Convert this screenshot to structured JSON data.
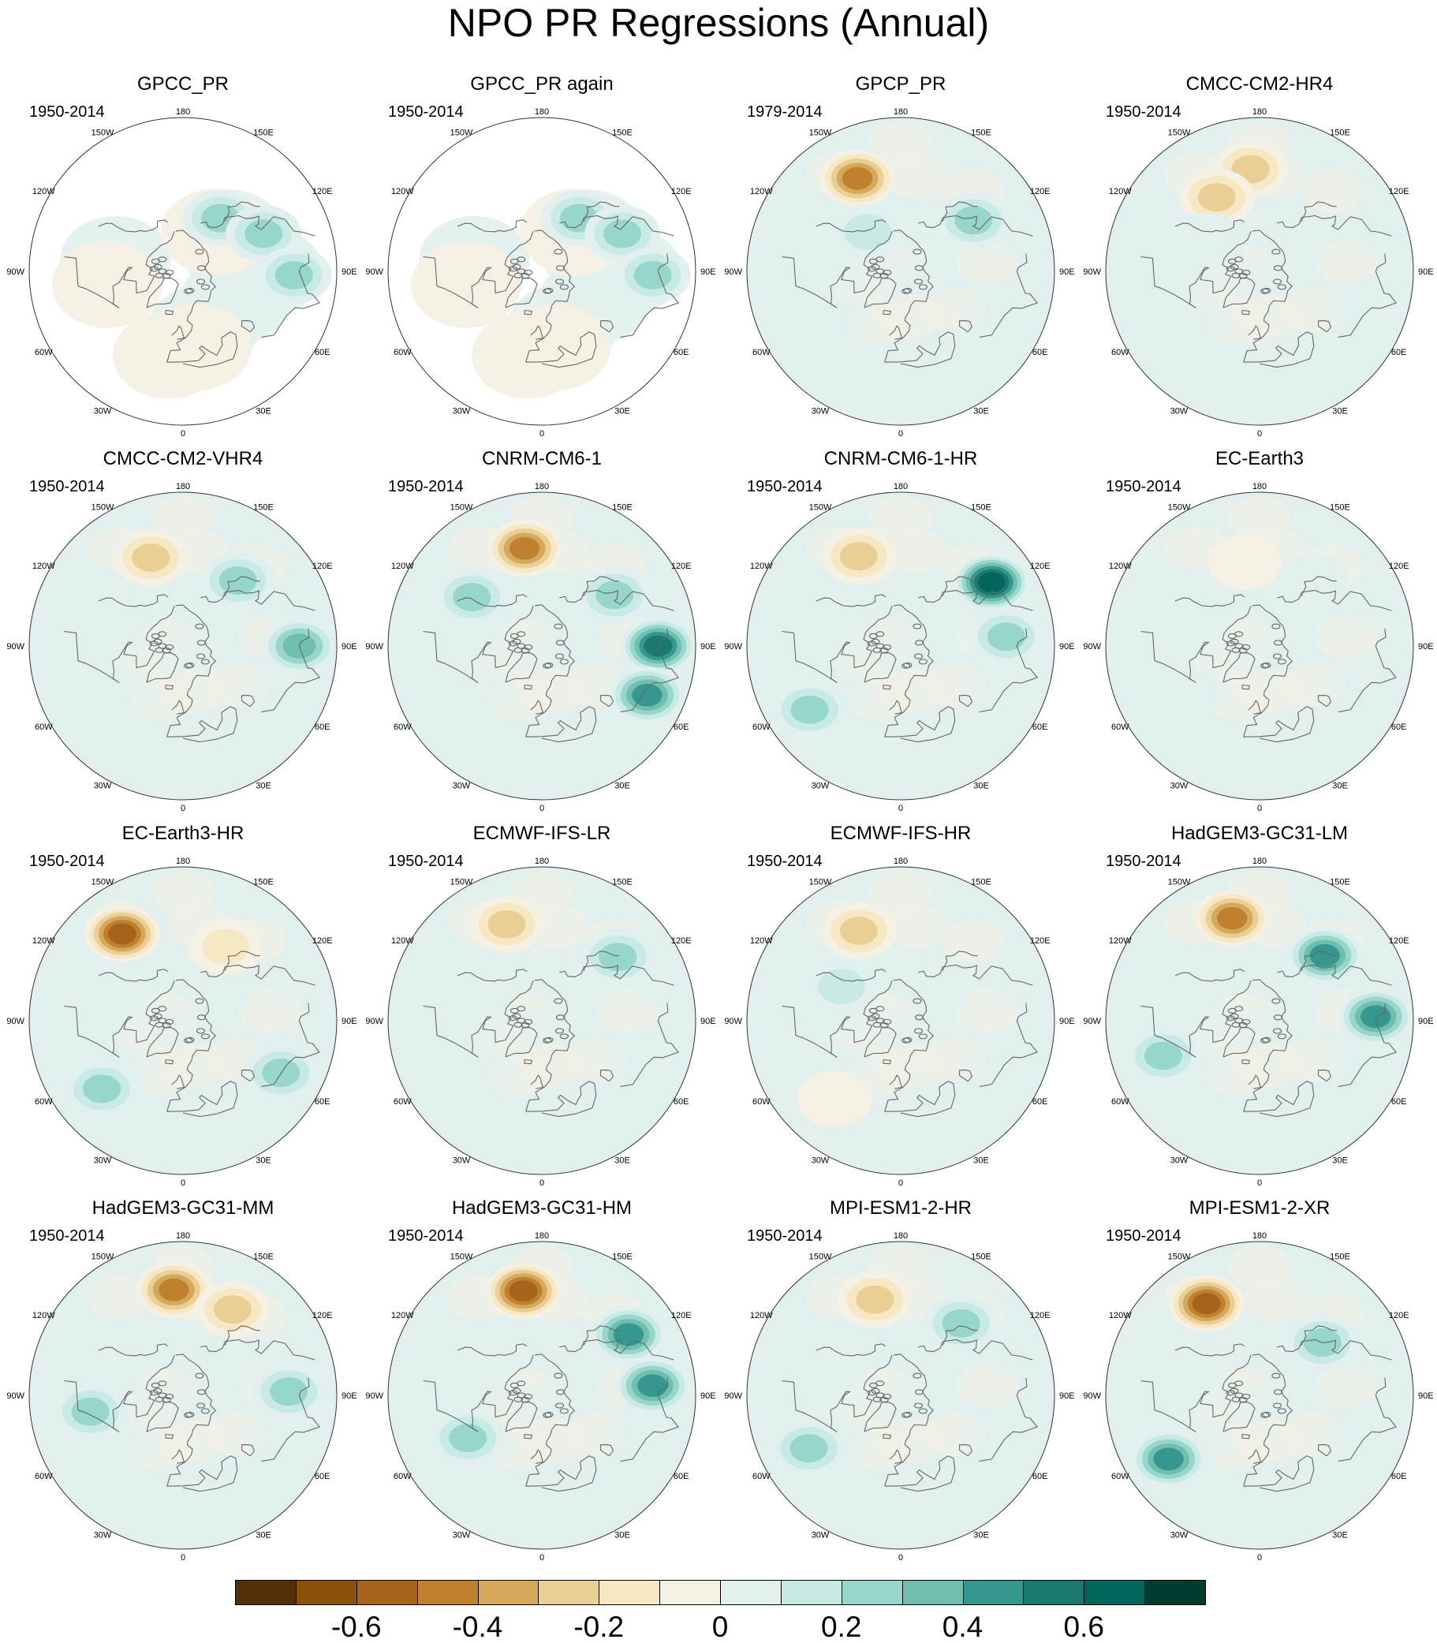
{
  "figure": {
    "title": "NPO PR Regressions (Annual)"
  },
  "longitude_labels": [
    "180",
    "150E",
    "120E",
    "90E",
    "60E",
    "30E",
    "0",
    "30W",
    "60W",
    "90W",
    "120W",
    "150W"
  ],
  "panels": [
    {
      "name": "GPCC_PR",
      "years": "1950-2014"
    },
    {
      "name": "GPCC_PR again",
      "years": "1950-2014"
    },
    {
      "name": "GPCP_PR",
      "years": "1979-2014"
    },
    {
      "name": "CMCC-CM2-HR4",
      "years": "1950-2014"
    },
    {
      "name": "CMCC-CM2-VHR4",
      "years": "1950-2014"
    },
    {
      "name": "CNRM-CM6-1",
      "years": "1950-2014"
    },
    {
      "name": "CNRM-CM6-1-HR",
      "years": "1950-2014"
    },
    {
      "name": "EC-Earth3",
      "years": "1950-2014"
    },
    {
      "name": "EC-Earth3-HR",
      "years": "1950-2014"
    },
    {
      "name": "ECMWF-IFS-LR",
      "years": "1950-2014"
    },
    {
      "name": "ECMWF-IFS-HR",
      "years": "1950-2014"
    },
    {
      "name": "HadGEM3-GC31-LM",
      "years": "1950-2014"
    },
    {
      "name": "HadGEM3-GC31-MM",
      "years": "1950-2014"
    },
    {
      "name": "HadGEM3-GC31-HM",
      "years": "1950-2014"
    },
    {
      "name": "MPI-ESM1-2-HR",
      "years": "1950-2014"
    },
    {
      "name": "MPI-ESM1-2-XR",
      "years": "1950-2014"
    }
  ],
  "chart_data": {
    "type": "heatmap",
    "projection": "north polar stereographic",
    "title": "NPO PR Regressions (Annual)",
    "colorbar": {
      "tick_labels": [
        "-0.6",
        "-0.4",
        "-0.2",
        "0",
        "0.2",
        "0.4",
        "0.6"
      ],
      "tick_values": [
        -0.6,
        -0.4,
        -0.2,
        0,
        0.2,
        0.4,
        0.6
      ],
      "levels": [
        -0.7,
        -0.6,
        -0.5,
        -0.4,
        -0.3,
        -0.2,
        -0.1,
        0,
        0.1,
        0.2,
        0.3,
        0.4,
        0.5,
        0.6,
        0.7
      ],
      "colors": [
        "#543005",
        "#8c510a",
        "#a6641a",
        "#bf812d",
        "#d5a85c",
        "#e9cf94",
        "#f6e8c3",
        "#f4f0e3",
        "#e1f0ee",
        "#c7eae5",
        "#97d6cb",
        "#6ebfae",
        "#35978f",
        "#1b7a70",
        "#01665e",
        "#003c30"
      ]
    },
    "panel_fields": [
      {
        "name": "GPCC_PR",
        "land_only": true,
        "features": [
          {
            "lon": 145,
            "lat": 52,
            "v": 0.3
          },
          {
            "lon": 115,
            "lat": 38,
            "v": 0.25
          },
          {
            "lon": 88,
            "lat": 25,
            "v": 0.35
          }
        ]
      },
      {
        "name": "GPCC_PR again",
        "land_only": true,
        "features": [
          {
            "lon": 145,
            "lat": 52,
            "v": 0.3
          },
          {
            "lon": 115,
            "lat": 38,
            "v": 0.25
          },
          {
            "lon": 88,
            "lat": 25,
            "v": 0.35
          }
        ]
      },
      {
        "name": "GPCP_PR",
        "land_only": false,
        "features": [
          {
            "lon": -155,
            "lat": 30,
            "v": -0.45
          },
          {
            "lon": 125,
            "lat": 38,
            "v": 0.3
          },
          {
            "lon": -140,
            "lat": 60,
            "v": 0.2
          },
          {
            "lon": -60,
            "lat": 30,
            "v": 0.1
          }
        ]
      },
      {
        "name": "CMCC-CM2-HR4",
        "land_only": false,
        "features": [
          {
            "lon": -175,
            "lat": 30,
            "v": -0.35
          },
          {
            "lon": -150,
            "lat": 40,
            "v": -0.25
          },
          {
            "lon": -120,
            "lat": 55,
            "v": 0.15
          }
        ]
      },
      {
        "name": "CMCC-CM2-VHR4",
        "land_only": false,
        "features": [
          {
            "lon": -160,
            "lat": 35,
            "v": -0.3
          },
          {
            "lon": 140,
            "lat": 40,
            "v": 0.35
          },
          {
            "lon": 90,
            "lat": 22,
            "v": 0.4
          }
        ]
      },
      {
        "name": "CNRM-CM6-1",
        "land_only": false,
        "features": [
          {
            "lon": -170,
            "lat": 32,
            "v": -0.45
          },
          {
            "lon": 125,
            "lat": 38,
            "v": 0.35
          },
          {
            "lon": 90,
            "lat": 22,
            "v": 0.6
          },
          {
            "lon": 65,
            "lat": 22,
            "v": 0.5
          },
          {
            "lon": -125,
            "lat": 40,
            "v": 0.25
          }
        ]
      },
      {
        "name": "CNRM-CM6-1-HR",
        "land_only": false,
        "features": [
          {
            "lon": -155,
            "lat": 32,
            "v": -0.35
          },
          {
            "lon": 125,
            "lat": 25,
            "v": 0.65
          },
          {
            "lon": 95,
            "lat": 28,
            "v": 0.3
          },
          {
            "lon": -55,
            "lat": 25,
            "v": 0.25
          }
        ]
      },
      {
        "name": "EC-Earth3",
        "land_only": false,
        "features": [
          {
            "lon": -170,
            "lat": 40,
            "v": -0.15
          },
          {
            "lon": 140,
            "lat": 42,
            "v": 0.15
          },
          {
            "lon": -60,
            "lat": 35,
            "v": 0.12
          }
        ]
      },
      {
        "name": "EC-Earth3-HR",
        "land_only": false,
        "features": [
          {
            "lon": -145,
            "lat": 28,
            "v": -0.55
          },
          {
            "lon": 150,
            "lat": 40,
            "v": -0.2
          },
          {
            "lon": 62,
            "lat": 25,
            "v": 0.3
          },
          {
            "lon": -50,
            "lat": 28,
            "v": 0.25
          }
        ]
      },
      {
        "name": "ECMWF-IFS-LR",
        "land_only": false,
        "features": [
          {
            "lon": -160,
            "lat": 30,
            "v": -0.35
          },
          {
            "lon": 130,
            "lat": 32,
            "v": 0.35
          },
          {
            "lon": -125,
            "lat": 50,
            "v": 0.15
          }
        ]
      },
      {
        "name": "ECMWF-IFS-HR",
        "land_only": false,
        "features": [
          {
            "lon": -155,
            "lat": 32,
            "v": -0.35
          },
          {
            "lon": -120,
            "lat": 50,
            "v": 0.2
          },
          {
            "lon": -40,
            "lat": 30,
            "v": -0.15
          }
        ]
      },
      {
        "name": "HadGEM3-GC31-LM",
        "land_only": false,
        "features": [
          {
            "lon": -165,
            "lat": 28,
            "v": -0.5
          },
          {
            "lon": 135,
            "lat": 36,
            "v": 0.45
          },
          {
            "lon": 92,
            "lat": 22,
            "v": 0.5
          },
          {
            "lon": -70,
            "lat": 30,
            "v": 0.3
          }
        ]
      },
      {
        "name": "HadGEM3-GC31-MM",
        "land_only": false,
        "features": [
          {
            "lon": -175,
            "lat": 28,
            "v": -0.45
          },
          {
            "lon": 150,
            "lat": 32,
            "v": -0.3
          },
          {
            "lon": -80,
            "lat": 35,
            "v": 0.25
          },
          {
            "lon": 92,
            "lat": 28,
            "v": 0.3
          }
        ]
      },
      {
        "name": "HadGEM3-GC31-HM",
        "land_only": false,
        "features": [
          {
            "lon": -170,
            "lat": 28,
            "v": -0.55
          },
          {
            "lon": 125,
            "lat": 28,
            "v": 0.5
          },
          {
            "lon": 95,
            "lat": 25,
            "v": 0.45
          },
          {
            "lon": -60,
            "lat": 40,
            "v": 0.25
          }
        ]
      },
      {
        "name": "MPI-ESM1-2-HR",
        "land_only": false,
        "features": [
          {
            "lon": -165,
            "lat": 32,
            "v": -0.35
          },
          {
            "lon": 140,
            "lat": 35,
            "v": 0.3
          },
          {
            "lon": -60,
            "lat": 28,
            "v": 0.3
          }
        ]
      },
      {
        "name": "MPI-ESM1-2-XR",
        "land_only": false,
        "features": [
          {
            "lon": -150,
            "lat": 28,
            "v": -0.55
          },
          {
            "lon": -55,
            "lat": 25,
            "v": 0.5
          },
          {
            "lon": 130,
            "lat": 42,
            "v": 0.25
          }
        ]
      }
    ]
  }
}
